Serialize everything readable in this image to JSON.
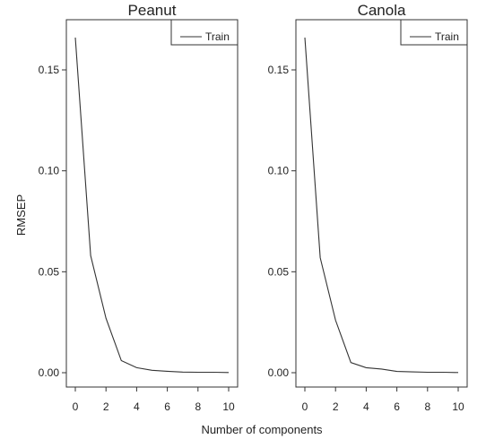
{
  "chart_data": [
    {
      "type": "line",
      "title": "Peanut",
      "xlabel": "Number of components",
      "ylabel": "RMSEP",
      "xlim": [
        0,
        10
      ],
      "ylim": [
        0,
        0.17
      ],
      "x_ticks": [
        0,
        2,
        4,
        6,
        8,
        10
      ],
      "x_tick_labels": [
        "0",
        "2",
        "4",
        "6",
        "8",
        "10"
      ],
      "y_ticks": [
        0,
        0.05,
        0.1,
        0.15
      ],
      "y_tick_labels": [
        "0.00",
        "0.05",
        "0.10",
        "0.15"
      ],
      "legend": {
        "position": "top-right",
        "entries": [
          "Train"
        ]
      },
      "grid": false,
      "series": [
        {
          "name": "Train",
          "x": [
            0,
            1,
            2,
            3,
            4,
            5,
            6,
            7,
            8,
            9,
            10
          ],
          "values": [
            0.166,
            0.058,
            0.027,
            0.006,
            0.0025,
            0.0012,
            0.0007,
            0.0003,
            0.0002,
            0.0002,
            0.0001
          ]
        }
      ]
    },
    {
      "type": "line",
      "title": "Canola",
      "xlabel": "Number of components",
      "ylabel": "RMSEP",
      "xlim": [
        0,
        10
      ],
      "ylim": [
        0,
        0.17
      ],
      "x_ticks": [
        0,
        2,
        4,
        6,
        8,
        10
      ],
      "x_tick_labels": [
        "0",
        "2",
        "4",
        "6",
        "8",
        "10"
      ],
      "y_ticks": [
        0,
        0.05,
        0.1,
        0.15
      ],
      "y_tick_labels": [
        "0.00",
        "0.05",
        "0.10",
        "0.15"
      ],
      "legend": {
        "position": "top-right",
        "entries": [
          "Train"
        ]
      },
      "grid": false,
      "series": [
        {
          "name": "Train",
          "x": [
            0,
            1,
            2,
            3,
            4,
            5,
            6,
            7,
            8,
            9,
            10
          ],
          "values": [
            0.166,
            0.057,
            0.026,
            0.005,
            0.0025,
            0.0018,
            0.0006,
            0.0004,
            0.0002,
            0.0002,
            0.0001
          ]
        }
      ]
    }
  ],
  "shared_labels": {
    "xlabel": "Number of components",
    "ylabel": "RMSEP"
  },
  "colors": {
    "line": "#333333",
    "axis": "#333333",
    "text": "#222222",
    "background": "#ffffff"
  }
}
